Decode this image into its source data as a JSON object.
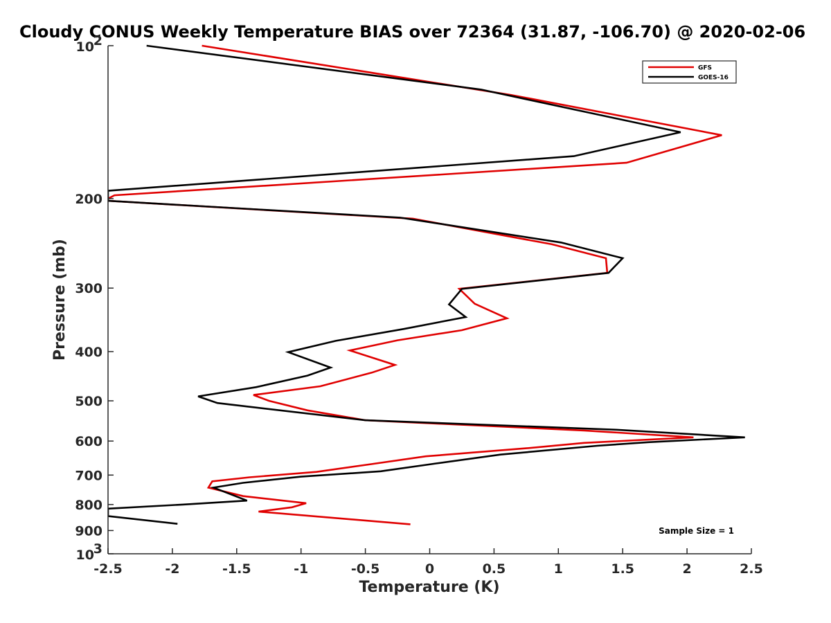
{
  "chart_data": {
    "type": "line",
    "title": "Cloudy CONUS Weekly Temperature BIAS over 72364 (31.87, -106.70) @ 2020-02-06",
    "xlabel": "Temperature (K)",
    "ylabel": "Pressure (mb)",
    "xlim": [
      -2.5,
      2.5
    ],
    "ylim": [
      100,
      1000
    ],
    "y_scale": "log",
    "y_reversed": true,
    "x_ticks": [
      "-2.5",
      "-2",
      "-1.5",
      "-1",
      "-0.5",
      "0",
      "0.5",
      "1",
      "1.5",
      "2",
      "2.5"
    ],
    "y_ticks": [
      {
        "value": 100,
        "base": "10",
        "exp": "2"
      },
      {
        "value": 200,
        "label": "200"
      },
      {
        "value": 300,
        "label": "300"
      },
      {
        "value": 400,
        "label": "400"
      },
      {
        "value": 500,
        "label": "500"
      },
      {
        "value": 600,
        "label": "600"
      },
      {
        "value": 700,
        "label": "700"
      },
      {
        "value": 800,
        "label": "800"
      },
      {
        "value": 900,
        "label": "900"
      },
      {
        "value": 1000,
        "base": "10",
        "exp": "3"
      }
    ],
    "legend": "top-right",
    "annotation": "Sample Size = 1",
    "series": [
      {
        "name": "GFS",
        "color": "#e00000",
        "points": [
          [
            -1.77,
            100
          ],
          [
            0.63,
            125
          ],
          [
            2.27,
            150
          ],
          [
            1.53,
            170
          ],
          [
            -2.45,
            197
          ],
          [
            -2.5,
            200
          ],
          [
            -2.5,
            202
          ],
          [
            -0.13,
            219
          ],
          [
            0.95,
            246
          ],
          [
            1.37,
            262
          ],
          [
            1.38,
            280
          ],
          [
            0.23,
            301
          ],
          [
            0.35,
            322
          ],
          [
            0.6,
            344
          ],
          [
            0.25,
            363
          ],
          [
            -0.25,
            380
          ],
          [
            -0.62,
            398
          ],
          [
            -0.27,
            425
          ],
          [
            -0.45,
            440
          ],
          [
            -0.85,
            468
          ],
          [
            -1.37,
            487
          ],
          [
            -1.25,
            500
          ],
          [
            -0.95,
            522
          ],
          [
            -0.5,
            546
          ],
          [
            1.2,
            572
          ],
          [
            2.05,
            590
          ],
          [
            1.2,
            605
          ],
          [
            0.75,
            620
          ],
          [
            -0.03,
            643
          ],
          [
            -0.45,
            666
          ],
          [
            -0.88,
            690
          ],
          [
            -1.4,
            707
          ],
          [
            -1.69,
            720
          ],
          [
            -1.72,
            741
          ],
          [
            -1.45,
            770
          ],
          [
            -0.96,
            795
          ],
          [
            -1.07,
            810
          ],
          [
            -1.33,
            826
          ],
          [
            -0.15,
            875
          ]
        ]
      },
      {
        "name": "GOES-16",
        "color": "#000000",
        "points": [
          [
            -2.2,
            100
          ],
          [
            0.4,
            122
          ],
          [
            1.95,
            148
          ],
          [
            1.12,
            165
          ],
          [
            -2.5,
            193
          ],
          [
            -2.5,
            202
          ],
          [
            -0.23,
            218
          ],
          [
            1.02,
            244
          ],
          [
            1.5,
            262
          ],
          [
            1.39,
            280
          ],
          [
            0.25,
            301
          ],
          [
            0.15,
            323
          ],
          [
            0.28,
            342
          ],
          [
            -0.2,
            361
          ],
          [
            -0.73,
            381
          ],
          [
            -1.1,
            401
          ],
          [
            -0.77,
            430
          ],
          [
            -0.95,
            446
          ],
          [
            -1.35,
            470
          ],
          [
            -1.8,
            490
          ],
          [
            -1.65,
            505
          ],
          [
            -0.5,
            546
          ],
          [
            1.45,
            570
          ],
          [
            2.45,
            590
          ],
          [
            1.7,
            603
          ],
          [
            1.3,
            613
          ],
          [
            0.55,
            638
          ],
          [
            0.05,
            664
          ],
          [
            -0.38,
            688
          ],
          [
            -1.0,
            705
          ],
          [
            -1.45,
            725
          ],
          [
            -1.68,
            741
          ],
          [
            -1.42,
            786
          ],
          [
            -1.92,
            800
          ],
          [
            -2.5,
            815
          ],
          [
            -2.5,
            843
          ],
          [
            -1.96,
            873
          ]
        ]
      }
    ]
  }
}
